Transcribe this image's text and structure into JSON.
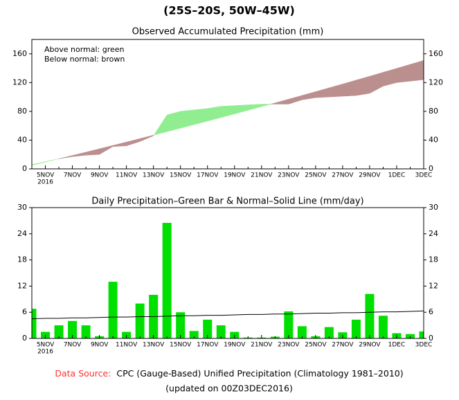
{
  "chart_data": [
    {
      "type": "accumulated",
      "header": "(25S–20S, 50W–45W)",
      "title": "Observed Accumulated Precipitation (mm)",
      "annotations": [
        "Above normal: green",
        "Below normal: brown"
      ],
      "categories": [
        null,
        "5NOV",
        null,
        "7NOV",
        null,
        "9NOV",
        null,
        "11NOV",
        null,
        "13NOV",
        null,
        "15NOV",
        null,
        "17NOV",
        null,
        "19NOV",
        null,
        "21NOV",
        null,
        "23NOV",
        null,
        "25NOV",
        null,
        "27NOV",
        null,
        "29NOV",
        null,
        "1DEC",
        null,
        "3DEC"
      ],
      "year_label": "2016",
      "series": [
        {
          "values": [
            6,
            10,
            14,
            17,
            19,
            20,
            31,
            32,
            38,
            46,
            75,
            80,
            82,
            84,
            87,
            88,
            89,
            90,
            90,
            90,
            96,
            99,
            100,
            101,
            102,
            105,
            115,
            120,
            122,
            124
          ]
        },
        {
          "values": [
            5,
            9.5,
            14,
            18.6,
            23.2,
            27.9,
            32.6,
            37.3,
            42.1,
            46.9,
            51.7,
            56.6,
            61.5,
            66.4,
            71.4,
            76.4,
            81.5,
            86.6,
            91.7,
            96.9,
            102.1,
            107.4,
            112.7,
            118,
            123.4,
            128.8,
            134.3,
            139.8,
            145.3,
            150.9
          ]
        }
      ],
      "above_color": "#90ee90",
      "below_color": "#bc8f8f",
      "ylim": [
        0,
        180
      ],
      "yticks": [
        0,
        40,
        80,
        120,
        160
      ]
    },
    {
      "type": "bar",
      "title": "Daily Precipitation–Green Bar & Normal–Solid Line (mm/day)",
      "categories": [
        null,
        "5NOV",
        null,
        "7NOV",
        null,
        "9NOV",
        null,
        "11NOV",
        null,
        "13NOV",
        null,
        "15NOV",
        null,
        "17NOV",
        null,
        "19NOV",
        null,
        "21NOV",
        null,
        "23NOV",
        null,
        "25NOV",
        null,
        "27NOV",
        null,
        "29NOV",
        null,
        "1DEC",
        null,
        "3DEC"
      ],
      "year_label": "2016",
      "series": [
        {
          "kind": "bar",
          "color": "#00e000",
          "values": [
            6.8,
            1.5,
            3,
            4,
            3,
            0.5,
            13,
            1.5,
            8,
            10,
            26.5,
            6,
            1.7,
            4.3,
            3,
            1.5,
            0.2,
            0.2,
            0.4,
            6.2,
            2.8,
            0.5,
            2.6,
            1.4,
            4.3,
            10.2,
            5.2,
            1.2,
            1,
            1.6
          ]
        },
        {
          "kind": "line",
          "color": "#000000",
          "values": [
            4.5,
            4.6,
            4.6,
            4.7,
            4.7,
            4.8,
            4.9,
            4.9,
            5.0,
            5.0,
            5.1,
            5.2,
            5.2,
            5.3,
            5.3,
            5.4,
            5.5,
            5.5,
            5.6,
            5.6,
            5.7,
            5.8,
            5.8,
            5.9,
            5.9,
            6.0,
            6.1,
            6.1,
            6.2,
            6.3
          ]
        }
      ],
      "ylim": [
        0,
        30
      ],
      "yticks": [
        0,
        6,
        12,
        18,
        24,
        30
      ]
    }
  ],
  "footer": {
    "source_label": "Data Source:",
    "source": "CPC (Gauge-Based) Unified Precipitation (Climatology 1981–2010)",
    "updated": "(updated on 00Z03DEC2016)"
  }
}
